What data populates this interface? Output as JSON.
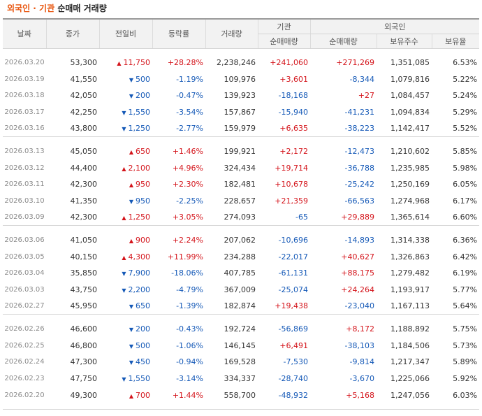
{
  "title": {
    "part1": "외국인 · 기관",
    "part2": "순매매 거래량"
  },
  "headers": {
    "date": "날짜",
    "close": "종가",
    "change": "전일비",
    "rate": "등락률",
    "volume": "거래량",
    "inst_group": "기관",
    "foreign_group": "외국인",
    "inst_net": "순매매량",
    "foreign_net": "순매매량",
    "holdings": "보유주수",
    "ratio": "보유율"
  },
  "colors": {
    "up": "#d4141b",
    "down": "#1559b7",
    "header_bg": "#f2f2f2"
  },
  "groups": [
    [
      {
        "date": "2026.03.20",
        "close": "53,300",
        "dir": "up",
        "change": "11,750",
        "rate": "+28.28%",
        "volume": "2,238,246",
        "inst": "+241,060",
        "foreign": "+271,269",
        "holdings": "1,351,085",
        "ratio": "6.53%"
      },
      {
        "date": "2026.03.19",
        "close": "41,550",
        "dir": "down",
        "change": "500",
        "rate": "-1.19%",
        "volume": "109,976",
        "inst": "+3,601",
        "foreign": "-8,344",
        "holdings": "1,079,816",
        "ratio": "5.22%"
      },
      {
        "date": "2026.03.18",
        "close": "42,050",
        "dir": "down",
        "change": "200",
        "rate": "-0.47%",
        "volume": "139,923",
        "inst": "-18,168",
        "foreign": "+27",
        "holdings": "1,084,457",
        "ratio": "5.24%"
      },
      {
        "date": "2026.03.17",
        "close": "42,250",
        "dir": "down",
        "change": "1,550",
        "rate": "-3.54%",
        "volume": "157,867",
        "inst": "-15,940",
        "foreign": "-41,231",
        "holdings": "1,094,834",
        "ratio": "5.29%"
      },
      {
        "date": "2026.03.16",
        "close": "43,800",
        "dir": "down",
        "change": "1,250",
        "rate": "-2.77%",
        "volume": "159,979",
        "inst": "+6,635",
        "foreign": "-38,223",
        "holdings": "1,142,417",
        "ratio": "5.52%"
      }
    ],
    [
      {
        "date": "2026.03.13",
        "close": "45,050",
        "dir": "up",
        "change": "650",
        "rate": "+1.46%",
        "volume": "199,921",
        "inst": "+2,172",
        "foreign": "-12,473",
        "holdings": "1,210,602",
        "ratio": "5.85%"
      },
      {
        "date": "2026.03.12",
        "close": "44,400",
        "dir": "up",
        "change": "2,100",
        "rate": "+4.96%",
        "volume": "324,434",
        "inst": "+19,714",
        "foreign": "-36,788",
        "holdings": "1,235,985",
        "ratio": "5.98%"
      },
      {
        "date": "2026.03.11",
        "close": "42,300",
        "dir": "up",
        "change": "950",
        "rate": "+2.30%",
        "volume": "182,481",
        "inst": "+10,678",
        "foreign": "-25,242",
        "holdings": "1,250,169",
        "ratio": "6.05%"
      },
      {
        "date": "2026.03.10",
        "close": "41,350",
        "dir": "down",
        "change": "950",
        "rate": "-2.25%",
        "volume": "228,657",
        "inst": "+21,359",
        "foreign": "-66,563",
        "holdings": "1,274,968",
        "ratio": "6.17%"
      },
      {
        "date": "2026.03.09",
        "close": "42,300",
        "dir": "up",
        "change": "1,250",
        "rate": "+3.05%",
        "volume": "274,093",
        "inst": "-65",
        "foreign": "+29,889",
        "holdings": "1,365,614",
        "ratio": "6.60%"
      }
    ],
    [
      {
        "date": "2026.03.06",
        "close": "41,050",
        "dir": "up",
        "change": "900",
        "rate": "+2.24%",
        "volume": "207,062",
        "inst": "-10,696",
        "foreign": "-14,893",
        "holdings": "1,314,338",
        "ratio": "6.36%"
      },
      {
        "date": "2026.03.05",
        "close": "40,150",
        "dir": "up",
        "change": "4,300",
        "rate": "+11.99%",
        "volume": "234,288",
        "inst": "-22,017",
        "foreign": "+40,627",
        "holdings": "1,326,863",
        "ratio": "6.42%"
      },
      {
        "date": "2026.03.04",
        "close": "35,850",
        "dir": "down",
        "change": "7,900",
        "rate": "-18.06%",
        "volume": "407,785",
        "inst": "-61,131",
        "foreign": "+88,175",
        "holdings": "1,279,482",
        "ratio": "6.19%"
      },
      {
        "date": "2026.03.03",
        "close": "43,750",
        "dir": "down",
        "change": "2,200",
        "rate": "-4.79%",
        "volume": "367,009",
        "inst": "-25,074",
        "foreign": "+24,264",
        "holdings": "1,193,917",
        "ratio": "5.77%"
      },
      {
        "date": "2026.02.27",
        "close": "45,950",
        "dir": "down",
        "change": "650",
        "rate": "-1.39%",
        "volume": "182,874",
        "inst": "+19,438",
        "foreign": "-23,040",
        "holdings": "1,167,113",
        "ratio": "5.64%"
      }
    ],
    [
      {
        "date": "2026.02.26",
        "close": "46,600",
        "dir": "down",
        "change": "200",
        "rate": "-0.43%",
        "volume": "192,724",
        "inst": "-56,869",
        "foreign": "+8,172",
        "holdings": "1,188,892",
        "ratio": "5.75%"
      },
      {
        "date": "2026.02.25",
        "close": "46,800",
        "dir": "down",
        "change": "500",
        "rate": "-1.06%",
        "volume": "146,145",
        "inst": "+6,491",
        "foreign": "-38,103",
        "holdings": "1,184,506",
        "ratio": "5.73%"
      },
      {
        "date": "2026.02.24",
        "close": "47,300",
        "dir": "down",
        "change": "450",
        "rate": "-0.94%",
        "volume": "169,528",
        "inst": "-7,530",
        "foreign": "-9,814",
        "holdings": "1,217,347",
        "ratio": "5.89%"
      },
      {
        "date": "2026.02.23",
        "close": "47,750",
        "dir": "down",
        "change": "1,550",
        "rate": "-3.14%",
        "volume": "334,337",
        "inst": "-28,740",
        "foreign": "-3,670",
        "holdings": "1,225,066",
        "ratio": "5.92%"
      },
      {
        "date": "2026.02.20",
        "close": "49,300",
        "dir": "up",
        "change": "700",
        "rate": "+1.44%",
        "volume": "558,700",
        "inst": "-48,932",
        "foreign": "+5,168",
        "holdings": "1,247,056",
        "ratio": "6.03%"
      }
    ]
  ]
}
